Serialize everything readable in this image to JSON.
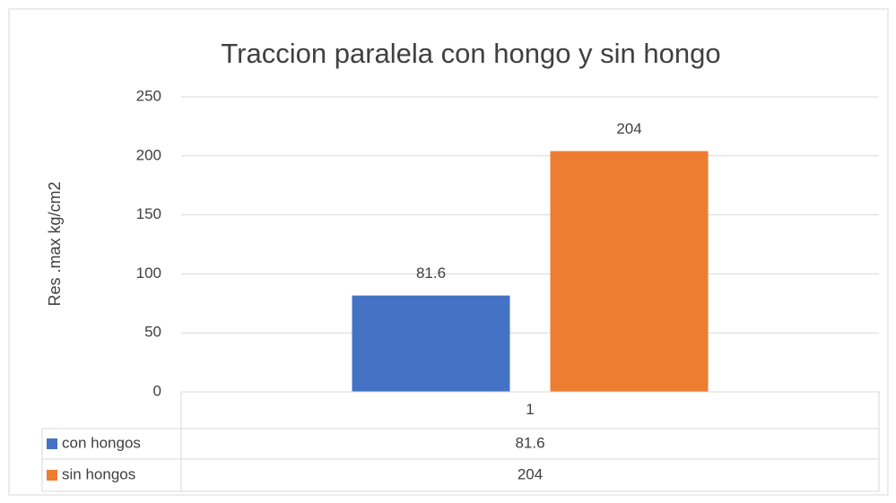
{
  "chart_data": {
    "type": "bar",
    "title": "Traccion paralela con hongo y sin hongo",
    "y_label": "Res .max kg/cm2",
    "categories": [
      "1"
    ],
    "series": [
      {
        "name": "con hongos",
        "color": "#4472c4",
        "values": [
          81.6
        ]
      },
      {
        "name": "sin hongos",
        "color": "#ed7d31",
        "values": [
          204
        ]
      }
    ],
    "ylim": [
      0,
      250
    ],
    "yticks": [
      0,
      50,
      100,
      150,
      200,
      250
    ],
    "grid": true,
    "data_labels": true,
    "data_table": true
  }
}
